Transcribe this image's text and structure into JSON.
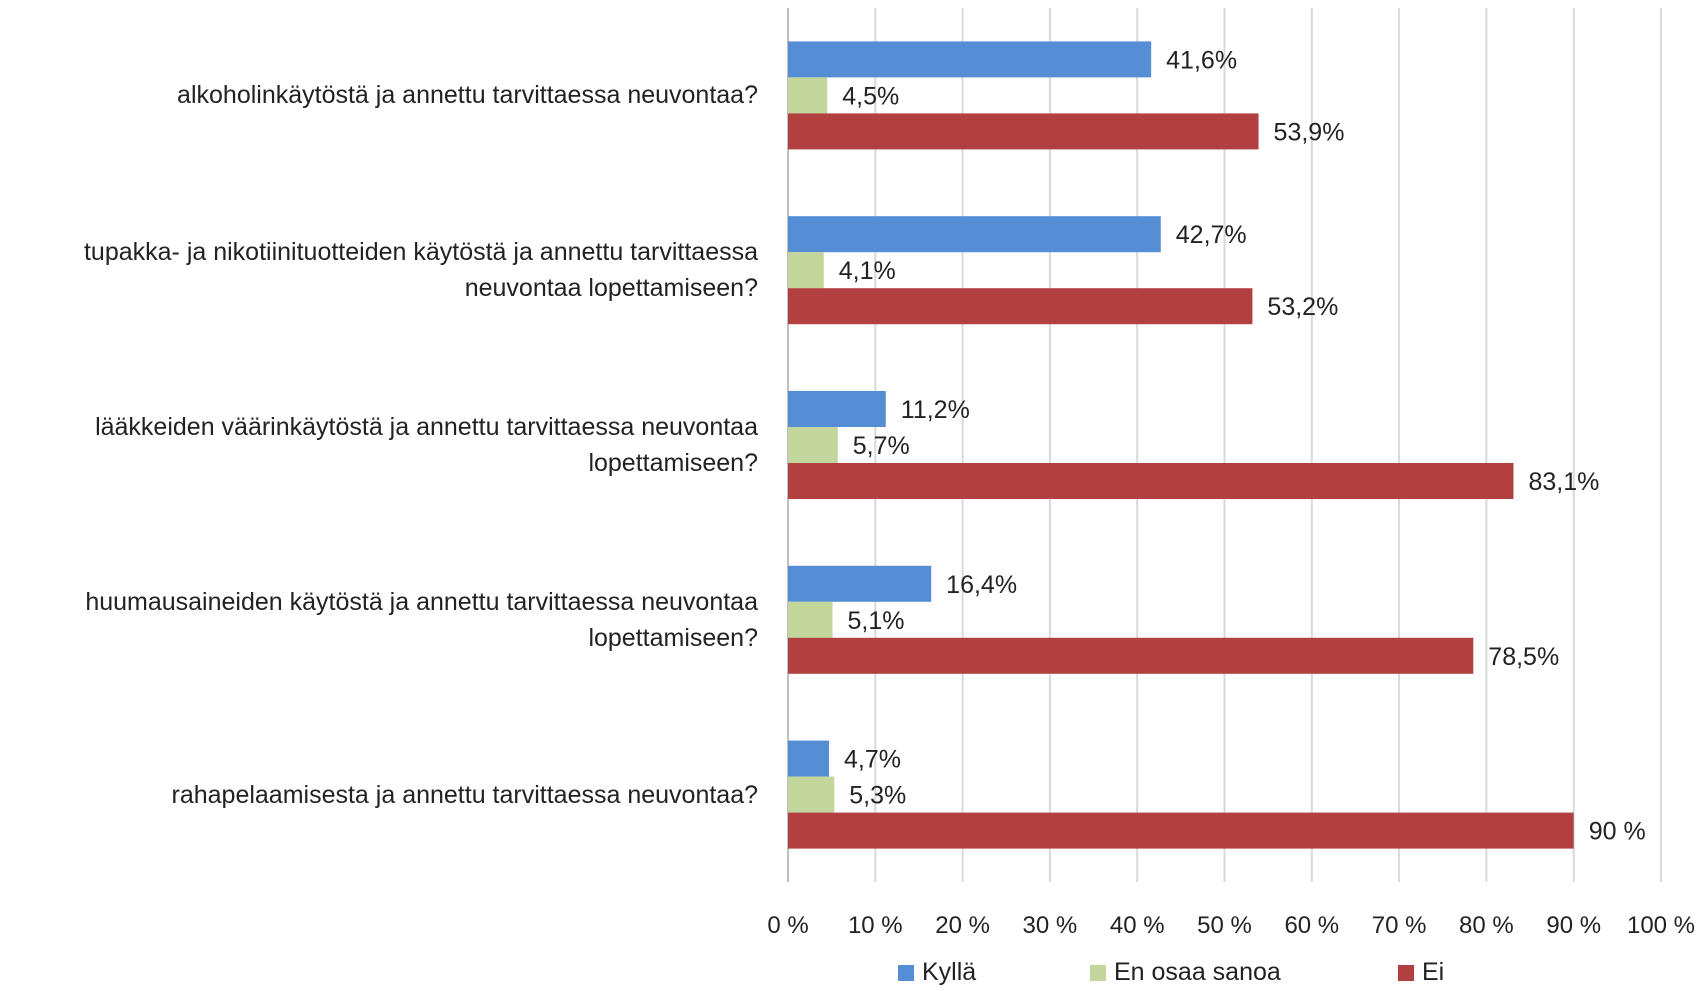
{
  "chart_data": {
    "type": "bar",
    "orientation": "horizontal",
    "categories": [
      "alkoholinkäytöstä ja annettu tarvittaessa neuvontaa?",
      "tupakka- ja nikotiinituotteiden käytöstä ja annettu tarvittaessa neuvontaa lopettamiseen?",
      "lääkkeiden väärinkäytöstä ja annettu tarvittaessa neuvontaa lopettamiseen?",
      "huumausaineiden käytöstä ja annettu tarvittaessa neuvontaa lopettamiseen?",
      "rahapelaamisesta ja annettu tarvittaessa neuvontaa?"
    ],
    "category_lines": [
      [
        "alkoholinkäytöstä ja annettu tarvittaessa neuvontaa?"
      ],
      [
        "tupakka- ja nikotiinituotteiden käytöstä ja annettu tarvittaessa",
        "neuvontaa lopettamiseen?"
      ],
      [
        "lääkkeiden väärinkäytöstä ja annettu tarvittaessa neuvontaa",
        "lopettamiseen?"
      ],
      [
        "huumausaineiden käytöstä ja annettu tarvittaessa neuvontaa",
        "lopettamiseen?"
      ],
      [
        "rahapelaamisesta ja annettu tarvittaessa neuvontaa?"
      ]
    ],
    "series": [
      {
        "name": "Kyllä",
        "color": "#558ed5",
        "values": [
          41.6,
          42.7,
          11.2,
          16.4,
          4.7
        ],
        "labels": [
          "41,6%",
          "42,7%",
          "11,2%",
          "16,4%",
          "4,7%"
        ]
      },
      {
        "name": "En osaa sanoa",
        "color": "#c3d69b",
        "values": [
          4.5,
          4.1,
          5.7,
          5.1,
          5.3
        ],
        "labels": [
          "4,5%",
          "4,1%",
          "5,7%",
          "5,1%",
          "5,3%"
        ]
      },
      {
        "name": "Ei",
        "color": "#b24040",
        "values": [
          53.9,
          53.2,
          83.1,
          78.5,
          90
        ],
        "labels": [
          "53,9%",
          "53,2%",
          "83,1%",
          "78,5%",
          "90 %"
        ]
      }
    ],
    "xlim": [
      0,
      100
    ],
    "x_ticks": [
      "0 %",
      "10 %",
      "20 %",
      "30 %",
      "40 %",
      "50 %",
      "60 %",
      "70 %",
      "80 %",
      "90 %",
      "100 %"
    ],
    "grid": true,
    "legend_position": "bottom"
  }
}
